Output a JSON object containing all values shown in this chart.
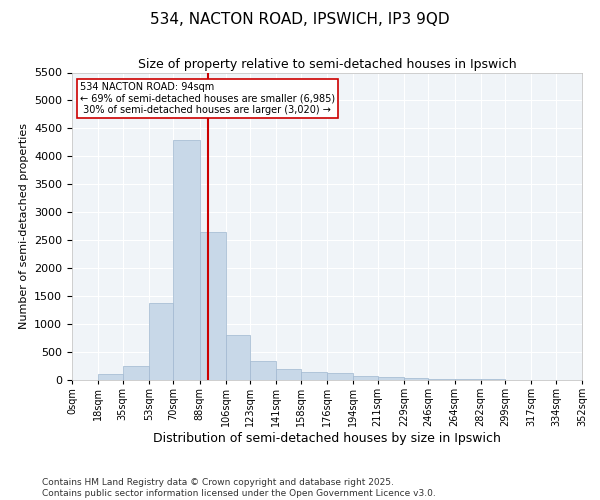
{
  "title1": "534, NACTON ROAD, IPSWICH, IP3 9QD",
  "title2": "Size of property relative to semi-detached houses in Ipswich",
  "xlabel": "Distribution of semi-detached houses by size in Ipswich",
  "ylabel": "Number of semi-detached properties",
  "property_size": 94,
  "property_label": "534 NACTON ROAD: 94sqm",
  "pct_smaller": 69,
  "pct_larger": 30,
  "n_smaller": 6985,
  "n_larger": 3020,
  "bar_color": "#c8d8e8",
  "bar_edge_color": "#a0b8d0",
  "vline_color": "#cc0000",
  "annotation_box_color": "#cc0000",
  "background_color": "#f0f4f8",
  "bins": [
    0,
    18,
    35,
    53,
    70,
    88,
    106,
    123,
    141,
    158,
    176,
    194,
    211,
    229,
    246,
    264,
    282,
    299,
    317,
    334,
    352
  ],
  "counts": [
    5,
    110,
    250,
    1380,
    4300,
    2650,
    800,
    340,
    190,
    150,
    120,
    80,
    55,
    35,
    20,
    15,
    10,
    8,
    5,
    3
  ],
  "ylim": [
    0,
    5500
  ],
  "yticks": [
    0,
    500,
    1000,
    1500,
    2000,
    2500,
    3000,
    3500,
    4000,
    4500,
    5000,
    5500
  ],
  "footnote_line1": "Contains HM Land Registry data © Crown copyright and database right 2025.",
  "footnote_line2": "Contains public sector information licensed under the Open Government Licence v3.0."
}
